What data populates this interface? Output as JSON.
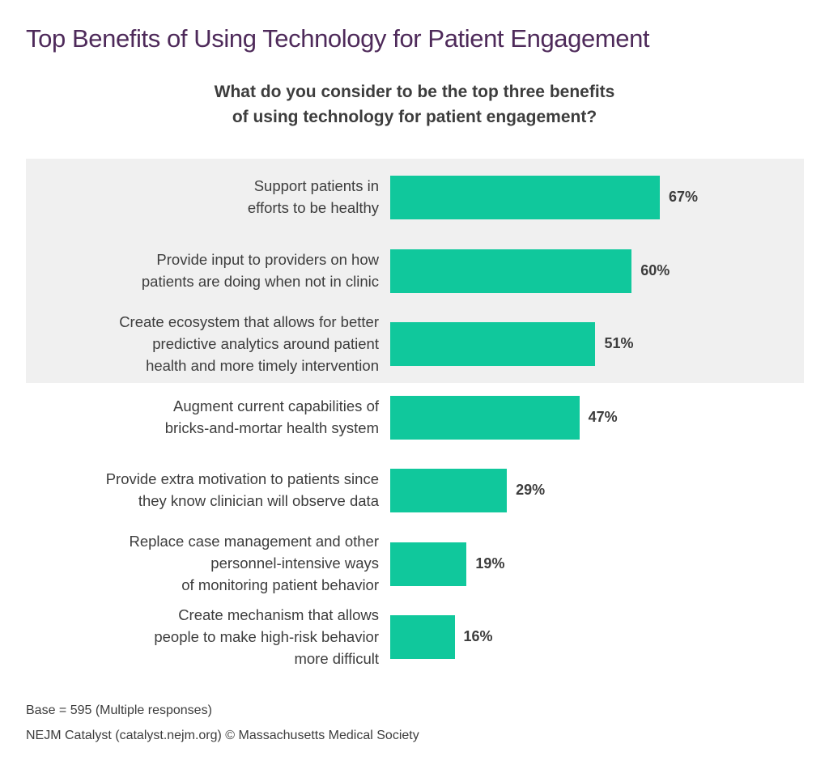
{
  "colors": {
    "bar": "#10c89c",
    "title": "#4e2a5a",
    "text": "#3d3d3d",
    "highlight_band": "#f0f0f0"
  },
  "chart_data": {
    "type": "bar",
    "orientation": "horizontal",
    "title": "Top Benefits of Using Technology for Patient Engagement",
    "subtitle_lines": [
      "What do you consider to be the top three benefits",
      "of using technology for patient engagement?"
    ],
    "xlabel": "",
    "ylabel": "",
    "xlim": [
      0,
      100
    ],
    "grid": false,
    "unit": "%",
    "highlighted_top_n": 3,
    "categories": [
      [
        "Support patients in",
        "efforts to be healthy"
      ],
      [
        "Provide input to providers on how",
        "patients are doing when not in clinic"
      ],
      [
        "Create ecosystem that allows for better",
        "predictive analytics around patient",
        "health and more timely intervention"
      ],
      [
        "Augment current capabilities of",
        "bricks-and-mortar health system"
      ],
      [
        "Provide extra motivation to patients since",
        "they know clinician will observe data"
      ],
      [
        "Replace case management and other",
        "personnel-intensive ways",
        "of monitoring patient behavior"
      ],
      [
        "Create mechanism that allows",
        "people to make high-risk behavior",
        "more difficult"
      ]
    ],
    "values": [
      67,
      60,
      51,
      47,
      29,
      19,
      16
    ],
    "data_labels": [
      "67%",
      "60%",
      "51%",
      "47%",
      "29%",
      "19%",
      "16%"
    ]
  },
  "footer": {
    "base_note": "Base = 595 (Multiple responses)",
    "source": "NEJM Catalyst (catalyst.nejm.org) © Massachusetts Medical Society"
  }
}
